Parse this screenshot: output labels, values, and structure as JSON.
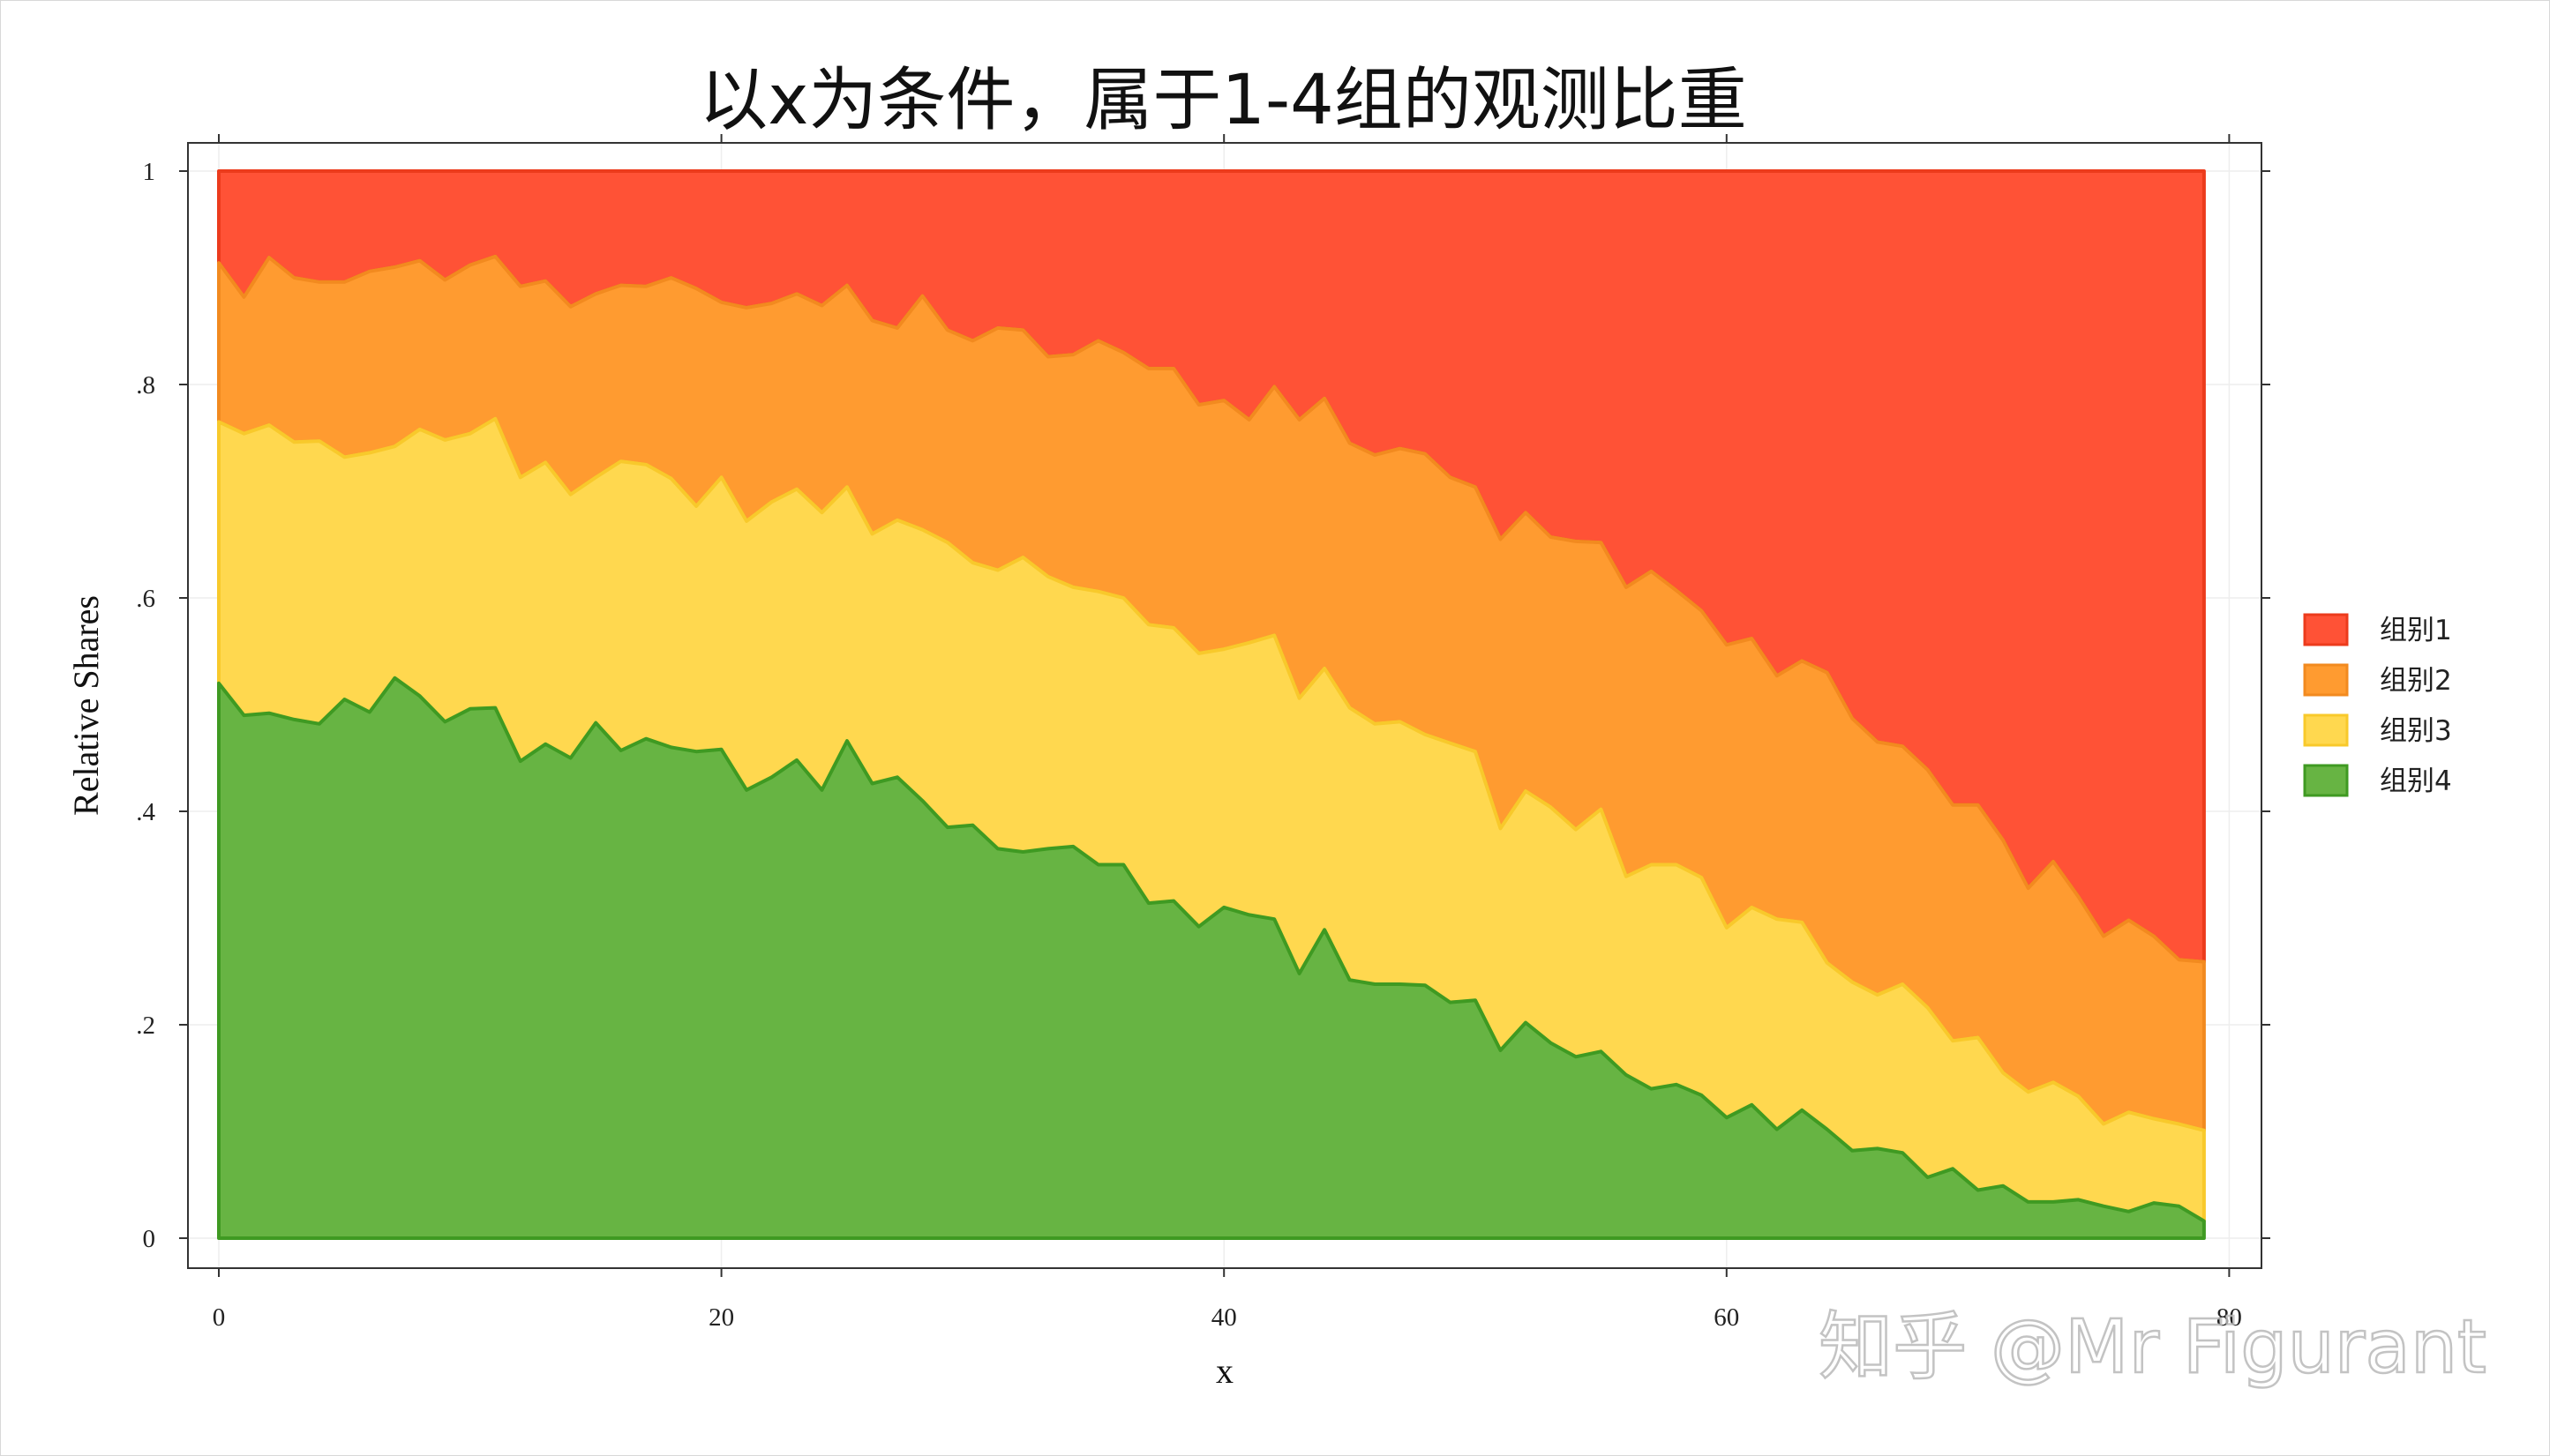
{
  "chart_data": {
    "type": "area",
    "stacked": true,
    "title": "以x为条件，属于1-4组的观测比重",
    "xlabel": "x",
    "ylabel": "Relative Shares",
    "xlim": [
      -1,
      80
    ],
    "ylim": [
      0,
      1
    ],
    "x_ticks": [
      0,
      20,
      40,
      60,
      80
    ],
    "x_tick_labels": [
      "0",
      "20",
      "40",
      "60",
      "80"
    ],
    "y_ticks": [
      0,
      0.2,
      0.4,
      0.6,
      0.8,
      1
    ],
    "y_tick_labels": [
      "0",
      ".2",
      ".4",
      ".6",
      ".8",
      "1"
    ],
    "grid": true,
    "legend_position": "right",
    "x": [
      0,
      1,
      2,
      3,
      4,
      5,
      6,
      7,
      8,
      9,
      10,
      11,
      12,
      13,
      14,
      15,
      16,
      17,
      18,
      19,
      20,
      21,
      22,
      23,
      24,
      25,
      26,
      27,
      28,
      29,
      30,
      31,
      32,
      33,
      34,
      35,
      36,
      37,
      38,
      39,
      40,
      41,
      42,
      43,
      44,
      45,
      46,
      47,
      48,
      49,
      50,
      51,
      52,
      53,
      54,
      55,
      56,
      57,
      58,
      59,
      60,
      61,
      62,
      63,
      64,
      65,
      66,
      67,
      68,
      69,
      70,
      71,
      72,
      73,
      74,
      75,
      76,
      77,
      78,
      79
    ],
    "cumulative_boundaries": {
      "top_of_组别4": [
        0.52,
        0.49,
        0.492,
        0.486,
        0.482,
        0.505,
        0.493,
        0.525,
        0.508,
        0.484,
        0.496,
        0.497,
        0.447,
        0.463,
        0.45,
        0.483,
        0.457,
        0.468,
        0.46,
        0.456,
        0.458,
        0.42,
        0.432,
        0.448,
        0.42,
        0.466,
        0.426,
        0.432,
        0.41,
        0.385,
        0.387,
        0.365,
        0.362,
        0.365,
        0.367,
        0.35,
        0.35,
        0.314,
        0.316,
        0.292,
        0.31,
        0.303,
        0.299,
        0.248,
        0.289,
        0.242,
        0.238,
        0.238,
        0.237,
        0.221,
        0.223,
        0.176,
        0.202,
        0.183,
        0.17,
        0.175,
        0.153,
        0.14,
        0.144,
        0.134,
        0.113,
        0.125,
        0.102,
        0.12,
        0.102,
        0.082,
        0.084,
        0.08,
        0.057,
        0.065,
        0.045,
        0.049,
        0.034,
        0.034,
        0.036,
        0.03,
        0.025,
        0.033,
        0.03,
        0.016
      ],
      "top_of_组别3": [
        0.765,
        0.754,
        0.762,
        0.746,
        0.747,
        0.732,
        0.736,
        0.742,
        0.758,
        0.748,
        0.754,
        0.768,
        0.713,
        0.727,
        0.697,
        0.713,
        0.728,
        0.725,
        0.712,
        0.686,
        0.713,
        0.672,
        0.69,
        0.702,
        0.68,
        0.704,
        0.66,
        0.673,
        0.664,
        0.652,
        0.633,
        0.626,
        0.638,
        0.62,
        0.61,
        0.606,
        0.6,
        0.575,
        0.572,
        0.548,
        0.552,
        0.558,
        0.565,
        0.506,
        0.534,
        0.497,
        0.482,
        0.484,
        0.472,
        0.464,
        0.456,
        0.384,
        0.419,
        0.404,
        0.383,
        0.402,
        0.339,
        0.35,
        0.35,
        0.338,
        0.291,
        0.31,
        0.299,
        0.296,
        0.258,
        0.24,
        0.228,
        0.238,
        0.216,
        0.185,
        0.188,
        0.155,
        0.137,
        0.146,
        0.133,
        0.107,
        0.118,
        0.112,
        0.107,
        0.101
      ],
      "top_of_组别2": [
        0.914,
        0.882,
        0.919,
        0.9,
        0.896,
        0.896,
        0.906,
        0.91,
        0.916,
        0.898,
        0.912,
        0.92,
        0.892,
        0.897,
        0.873,
        0.885,
        0.893,
        0.892,
        0.9,
        0.89,
        0.877,
        0.872,
        0.876,
        0.885,
        0.874,
        0.893,
        0.86,
        0.853,
        0.883,
        0.851,
        0.841,
        0.853,
        0.851,
        0.826,
        0.828,
        0.841,
        0.83,
        0.815,
        0.815,
        0.781,
        0.785,
        0.767,
        0.798,
        0.767,
        0.787,
        0.745,
        0.734,
        0.74,
        0.735,
        0.713,
        0.704,
        0.655,
        0.68,
        0.657,
        0.653,
        0.652,
        0.61,
        0.625,
        0.607,
        0.588,
        0.556,
        0.562,
        0.527,
        0.541,
        0.53,
        0.487,
        0.465,
        0.461,
        0.439,
        0.406,
        0.406,
        0.373,
        0.328,
        0.353,
        0.32,
        0.283,
        0.298,
        0.283,
        0.261,
        0.259
      ],
      "top_of_组别1": [
        1,
        1,
        1,
        1,
        1,
        1,
        1,
        1,
        1,
        1,
        1,
        1,
        1,
        1,
        1,
        1,
        1,
        1,
        1,
        1,
        1,
        1,
        1,
        1,
        1,
        1,
        1,
        1,
        1,
        1,
        1,
        1,
        1,
        1,
        1,
        1,
        1,
        1,
        1,
        1,
        1,
        1,
        1,
        1,
        1,
        1,
        1,
        1,
        1,
        1,
        1,
        1,
        1,
        1,
        1,
        1,
        1,
        1,
        1,
        1,
        1,
        1,
        1,
        1,
        1,
        1,
        1,
        1,
        1,
        1,
        1,
        1,
        1,
        1,
        1,
        1,
        1,
        1,
        1,
        1
      ]
    },
    "series": [
      {
        "name": "组别1",
        "fill": "#ff5236",
        "stroke": "#ec3b1c"
      },
      {
        "name": "组别2",
        "fill": "#ff9b30",
        "stroke": "#f28a1f"
      },
      {
        "name": "组别3",
        "fill": "#ffd84f",
        "stroke": "#f8c92b"
      },
      {
        "name": "组别4",
        "fill": "#67b443",
        "stroke": "#3f9a22"
      }
    ]
  },
  "watermark": "知乎 @Mr Figurant"
}
